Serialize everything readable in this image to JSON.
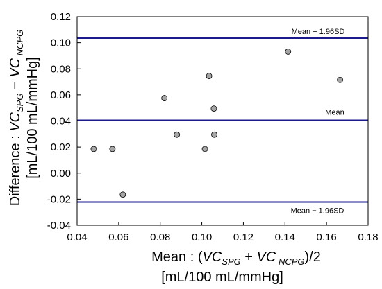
{
  "chart_data": {
    "type": "scatter",
    "title": "",
    "x_ticks": [
      "0.04",
      "0.06",
      "0.08",
      "0.10",
      "0.12",
      "0.14",
      "0.16",
      "0.18"
    ],
    "y_ticks": [
      "-0.04",
      "-0.02",
      "0.00",
      "0.02",
      "0.04",
      "0.06",
      "0.08",
      "0.10",
      "0.12"
    ],
    "xlim": [
      0.04,
      0.18
    ],
    "ylim": [
      -0.04,
      0.12
    ],
    "grid": false,
    "xlabel": {
      "line1_prefix": "Mean : (",
      "vc1": "VC",
      "sub1": "SPG",
      "plus": " + ",
      "vc2": "VC",
      "sub2": " NCPG",
      "suffix": ")/2",
      "line2": "[mL/100 mL/mmHg]"
    },
    "ylabel": {
      "prefix": "Difference : ",
      "vc1": "VC",
      "sub1": "SPG",
      "minus": " − ",
      "vc2": "VC",
      "sub2": " NCPG",
      "line2": "[mL/100 mL/mmHg]"
    },
    "reference_lines": [
      {
        "label": "Mean + 1.96SD",
        "y": 0.1035
      },
      {
        "label": "Mean",
        "y": 0.0405
      },
      {
        "label": "Mean − 1.96SD",
        "y": -0.0222
      }
    ],
    "points": [
      {
        "x": 0.048,
        "y": 0.0185
      },
      {
        "x": 0.057,
        "y": 0.0185
      },
      {
        "x": 0.062,
        "y": -0.0165
      },
      {
        "x": 0.082,
        "y": 0.0575
      },
      {
        "x": 0.088,
        "y": 0.0295
      },
      {
        "x": 0.1015,
        "y": 0.0185
      },
      {
        "x": 0.1035,
        "y": 0.0745
      },
      {
        "x": 0.1058,
        "y": 0.0495
      },
      {
        "x": 0.106,
        "y": 0.0295
      },
      {
        "x": 0.1415,
        "y": 0.0932
      },
      {
        "x": 0.1665,
        "y": 0.0715
      }
    ],
    "colors": {
      "reference_line": "#1a1a8c",
      "point_fill": "#a6a6a6",
      "point_stroke": "#000000",
      "axis": "#000000"
    }
  }
}
